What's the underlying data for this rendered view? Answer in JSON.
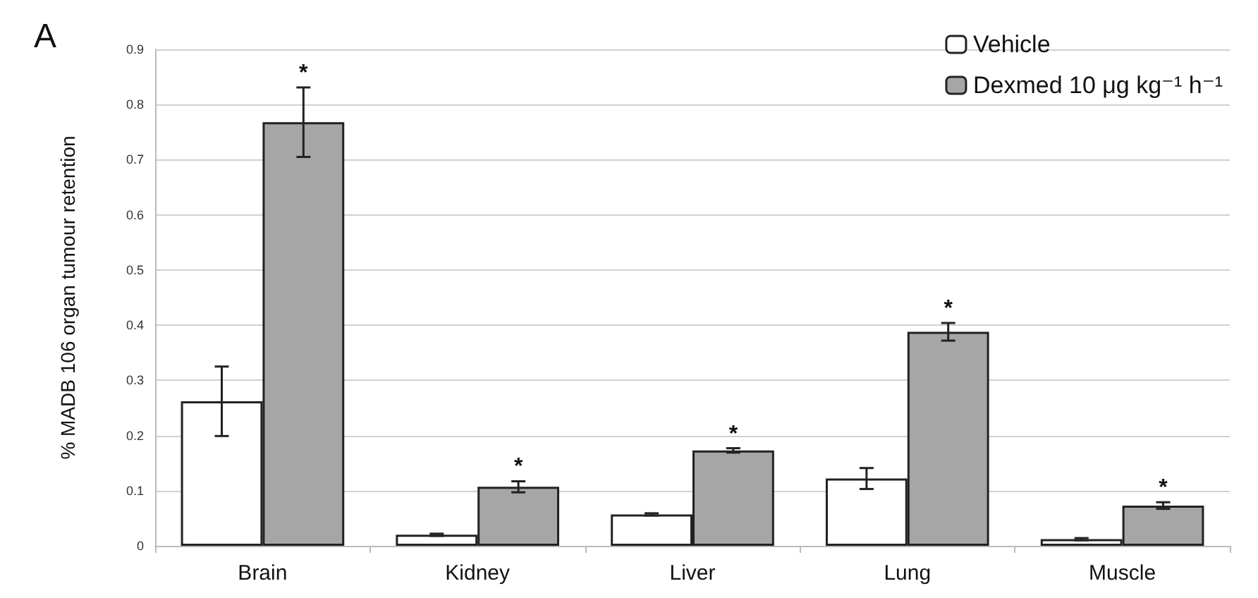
{
  "chart_data": {
    "type": "bar",
    "ylabel": "% MADB 106 organ tumour retention",
    "categories": [
      "Brain",
      "Kidney",
      "Liver",
      "Lung",
      "Muscle"
    ],
    "series": [
      {
        "name": "Vehicle",
        "color": "#ffffff",
        "values": [
          0.262,
          0.02,
          0.057,
          0.122,
          0.012
        ],
        "errors": [
          0.063,
          0.002,
          0.002,
          0.019,
          0.002
        ]
      },
      {
        "name": "Dexmed 10 μg kg⁻¹ h⁻¹",
        "color": "#a6a6a6",
        "values": [
          0.768,
          0.107,
          0.173,
          0.388,
          0.073
        ],
        "errors": [
          0.063,
          0.01,
          0.004,
          0.016,
          0.006
        ]
      }
    ],
    "ylim": [
      0,
      0.9
    ],
    "yticks": [
      0,
      0.1,
      0.2,
      0.3,
      0.4,
      0.5,
      0.6,
      0.7,
      0.8,
      0.9
    ],
    "grid": "y",
    "legend": "top right",
    "annotations": [
      "A",
      "*",
      "*",
      "*",
      "*",
      "*"
    ]
  }
}
